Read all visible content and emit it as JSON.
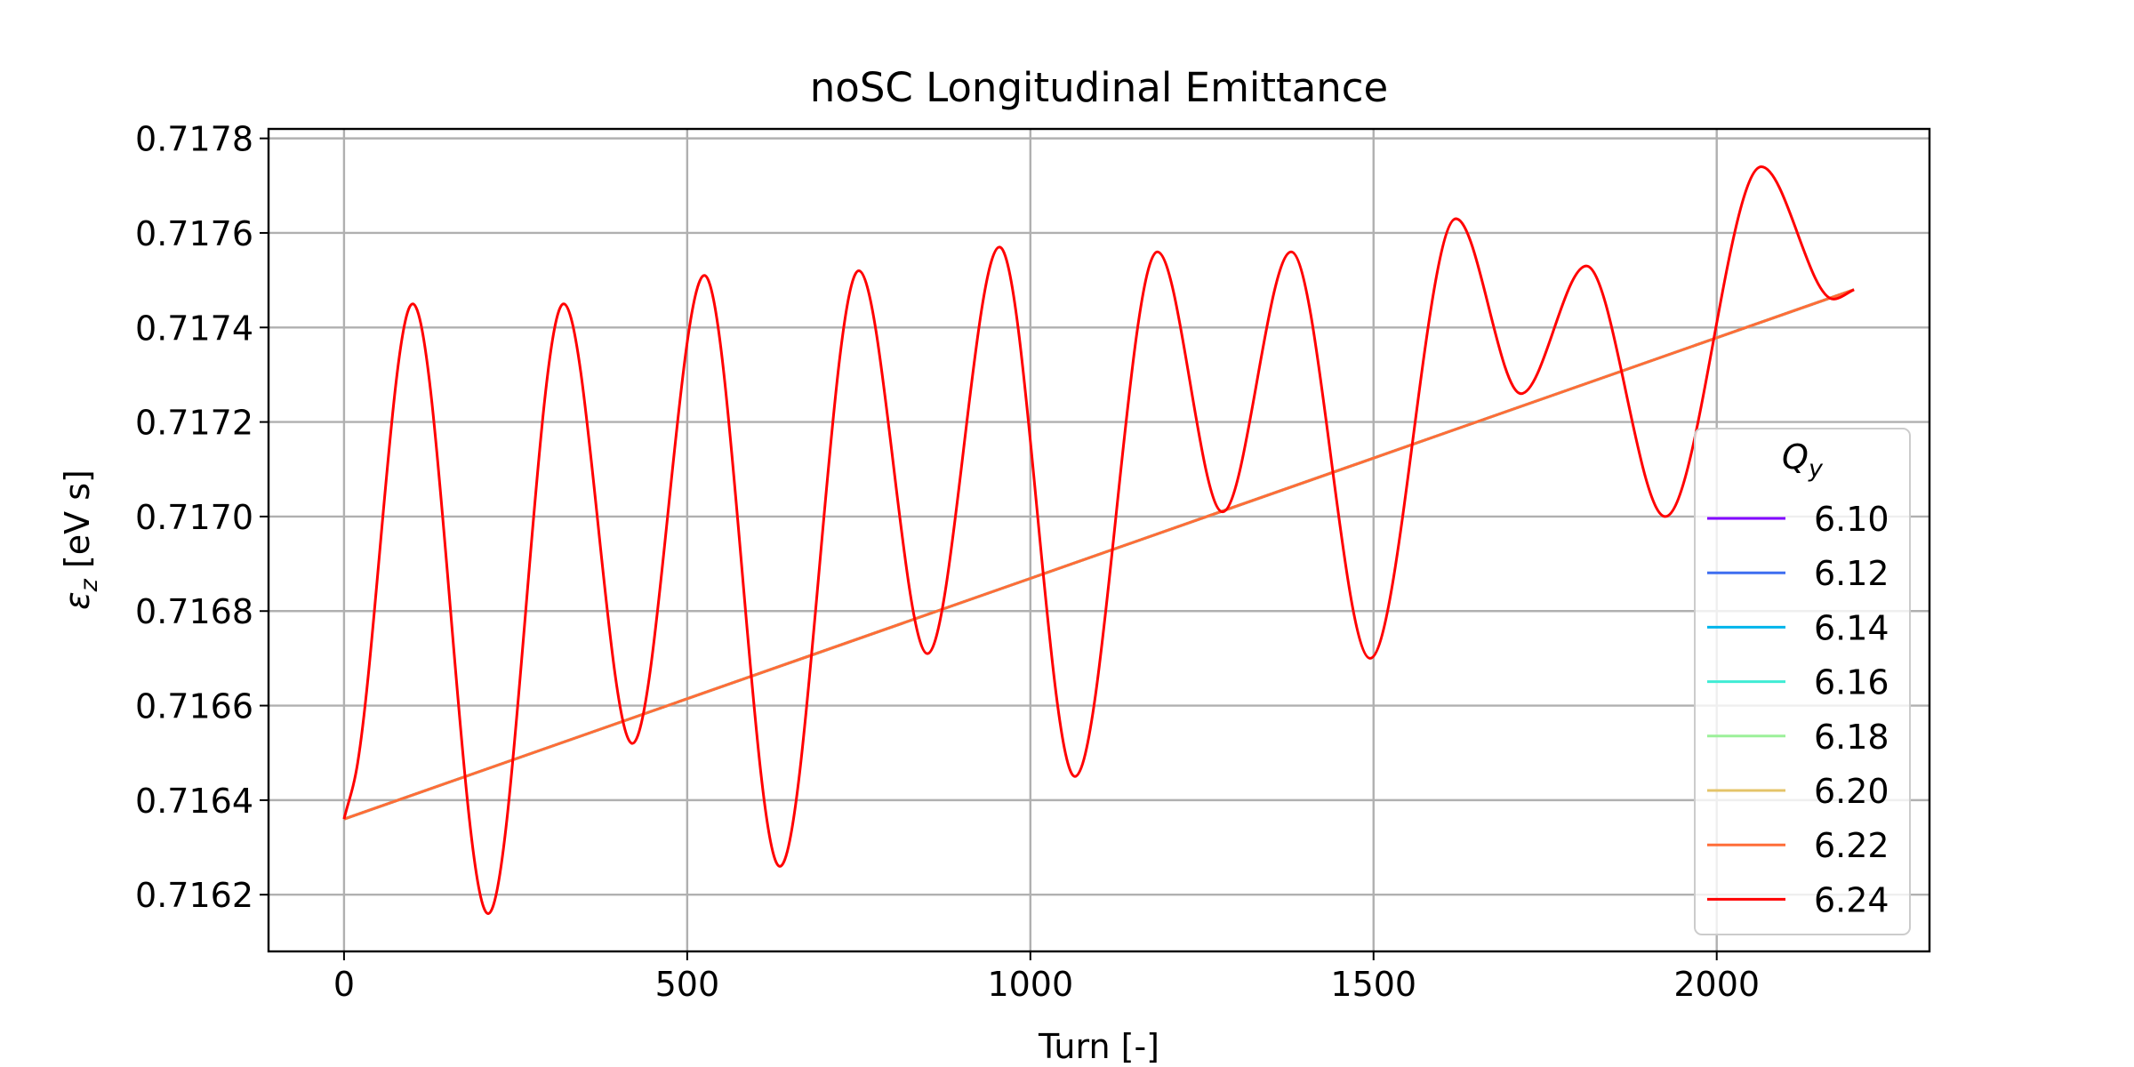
{
  "chart_data": {
    "type": "line",
    "title": "noSC Longitudinal Emittance",
    "xlabel": "Turn [-]",
    "ylabel_symbol": "ε",
    "ylabel_sub": "z",
    "ylabel_unit": " [eV s]",
    "xlim": [
      -110,
      2310
    ],
    "ylim": [
      0.71608,
      0.71782
    ],
    "xticks": [
      0,
      500,
      1000,
      1500,
      2000
    ],
    "yticks": [
      0.7162,
      0.7164,
      0.7166,
      0.7168,
      0.717,
      0.7172,
      0.7174,
      0.7176,
      0.7178
    ],
    "ytick_labels": [
      "0.7162",
      "0.7164",
      "0.7166",
      "0.7168",
      "0.7170",
      "0.7172",
      "0.7174",
      "0.7176",
      "0.7178"
    ],
    "grid": true,
    "legend": {
      "placement": "lower-right",
      "title_symbol": "Q",
      "title_sub": "y"
    },
    "series": [
      {
        "name": "6.10",
        "color": "#8000ff",
        "x": [
          0,
          2200
        ],
        "y": [
          0.71636,
          0.71748
        ]
      },
      {
        "name": "6.12",
        "color": "#3e6ef0",
        "x": [
          0,
          2200
        ],
        "y": [
          0.71636,
          0.71748
        ]
      },
      {
        "name": "6.14",
        "color": "#00b5eb",
        "x": [
          0,
          2200
        ],
        "y": [
          0.71636,
          0.71748
        ]
      },
      {
        "name": "6.16",
        "color": "#40ecd4",
        "x": [
          0,
          2200
        ],
        "y": [
          0.71636,
          0.71748
        ]
      },
      {
        "name": "6.18",
        "color": "#9cf099",
        "x": [
          0,
          2200
        ],
        "y": [
          0.71636,
          0.71748
        ]
      },
      {
        "name": "6.20",
        "color": "#e4c46a",
        "x": [
          0,
          2200
        ],
        "y": [
          0.71636,
          0.71748
        ]
      },
      {
        "name": "6.22",
        "color": "#ff6d38",
        "x": [
          0,
          2200
        ],
        "y": [
          0.71636,
          0.71748
        ]
      },
      {
        "name": "6.24",
        "color": "#ff0000",
        "x": [
          0,
          20,
          100,
          210,
          320,
          420,
          525,
          635,
          750,
          850,
          955,
          1065,
          1185,
          1280,
          1380,
          1495,
          1620,
          1715,
          1810,
          1925,
          2065,
          2170,
          2200
        ],
        "y": [
          0.71636,
          0.71648,
          0.71745,
          0.71616,
          0.71745,
          0.71652,
          0.71751,
          0.71626,
          0.71752,
          0.71671,
          0.71757,
          0.71645,
          0.71756,
          0.71701,
          0.71756,
          0.7167,
          0.71763,
          0.71726,
          0.71753,
          0.717,
          0.71774,
          0.71746,
          0.71748
        ]
      }
    ]
  }
}
